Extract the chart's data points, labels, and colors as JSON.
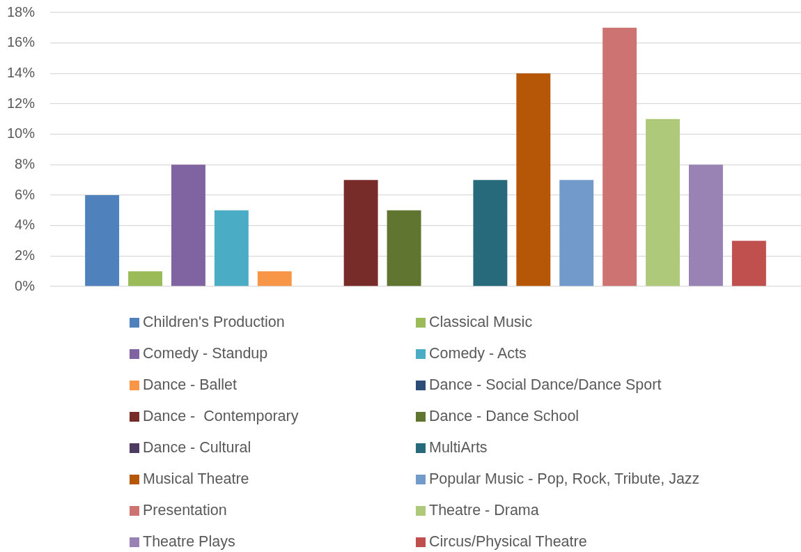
{
  "chart_data": {
    "type": "bar",
    "categories": [
      null
    ],
    "series": [
      {
        "name": "Children's Production",
        "color": "#4f81bd",
        "values": [
          6
        ]
      },
      {
        "name": "Classical Music",
        "color": "#9bbb59",
        "values": [
          1
        ]
      },
      {
        "name": "Comedy - Standup",
        "color": "#8064a2",
        "values": [
          8
        ]
      },
      {
        "name": "Comedy - Acts",
        "color": "#4bacc6",
        "values": [
          5
        ]
      },
      {
        "name": "Dance - Ballet",
        "color": "#f79646",
        "values": [
          1
        ]
      },
      {
        "name": "Dance - Social Dance/Dance Sport",
        "color": "#2c4d75",
        "values": [
          0
        ]
      },
      {
        "name": "Dance -  Contemporary",
        "color": "#772c2a",
        "values": [
          7
        ]
      },
      {
        "name": "Dance - Dance School",
        "color": "#5f7530",
        "values": [
          5
        ]
      },
      {
        "name": "Dance - Cultural",
        "color": "#4d3b62",
        "values": [
          0
        ]
      },
      {
        "name": "MultiArts",
        "color": "#276a7c",
        "values": [
          7
        ]
      },
      {
        "name": "Musical Theatre",
        "color": "#b65708",
        "values": [
          14
        ]
      },
      {
        "name": "Popular Music - Pop, Rock, Tribute, Jazz",
        "color": "#729aca",
        "values": [
          7
        ]
      },
      {
        "name": "Presentation",
        "color": "#cd7371",
        "values": [
          17
        ]
      },
      {
        "name": "Theatre - Drama",
        "color": "#afc97a",
        "values": [
          11
        ]
      },
      {
        "name": "Theatre Plays",
        "color": "#9983b5",
        "values": [
          8
        ]
      },
      {
        "name": "Circus/Physical Theatre",
        "color": "#c0504d",
        "values": [
          3
        ]
      }
    ],
    "ylim": [
      0,
      18
    ],
    "yticks": [
      {
        "value": 0,
        "label": "0%"
      },
      {
        "value": 2,
        "label": "2%"
      },
      {
        "value": 4,
        "label": "4%"
      },
      {
        "value": 6,
        "label": "6%"
      },
      {
        "value": 8,
        "label": "8%"
      },
      {
        "value": 10,
        "label": "10%"
      },
      {
        "value": 12,
        "label": "12%"
      },
      {
        "value": 14,
        "label": "14%"
      },
      {
        "value": 16,
        "label": "16%"
      },
      {
        "value": 18,
        "label": "18%"
      }
    ],
    "grid": "y",
    "legend": "bottom",
    "tick_labels": "y"
  }
}
